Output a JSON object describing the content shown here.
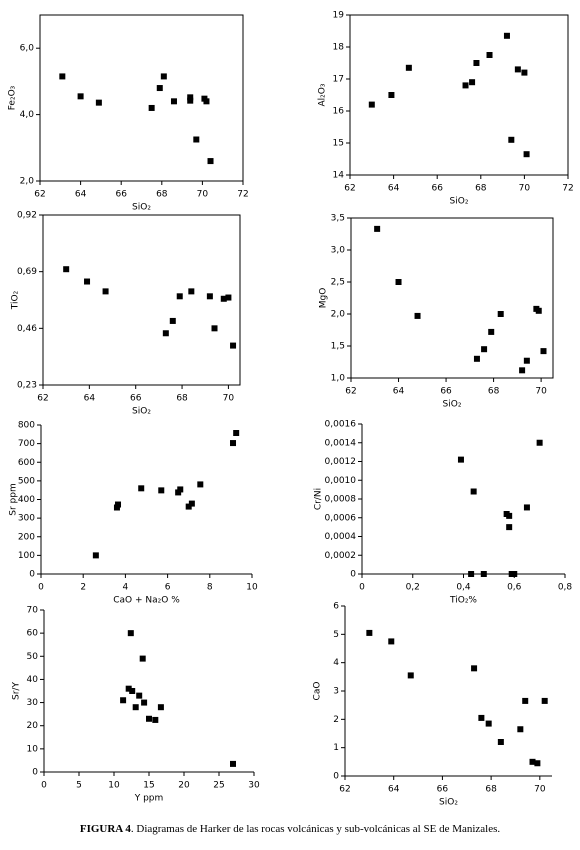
{
  "chart_data": [
    {
      "type": "scatter",
      "x_label": "SiO₂",
      "y_label": "Fe₂O₃",
      "color": "#000000",
      "box": true,
      "x": [
        63.1,
        64.0,
        64.9,
        67.5,
        67.9,
        68.1,
        68.6,
        69.4,
        69.4,
        70.1,
        70.2,
        69.7,
        70.4
      ],
      "values": [
        5.15,
        4.55,
        4.36,
        4.2,
        4.8,
        5.15,
        4.4,
        4.42,
        4.52,
        4.48,
        4.4,
        3.25,
        2.6
      ],
      "xlim": [
        62,
        72
      ],
      "xticks": [
        62,
        64,
        66,
        68,
        70,
        72
      ],
      "ylim": [
        2,
        7
      ],
      "yticks": [
        {
          "value": 2,
          "label": "2,0"
        },
        {
          "value": 4,
          "label": "4,0"
        },
        {
          "value": 6,
          "label": "6,0"
        }
      ]
    },
    {
      "type": "scatter",
      "x_label": "SiO₂",
      "y_label": "Al₂O₃",
      "color": "#000000",
      "box": true,
      "x": [
        63.0,
        63.9,
        64.7,
        67.3,
        67.6,
        67.8,
        68.4,
        69.2,
        69.4,
        69.7,
        70.0,
        70.1
      ],
      "values": [
        16.2,
        16.5,
        17.35,
        16.8,
        16.9,
        17.5,
        17.75,
        18.35,
        15.1,
        17.3,
        17.2,
        14.65
      ],
      "xlim": [
        62,
        72
      ],
      "xticks": [
        62,
        64,
        66,
        68,
        70,
        72
      ],
      "ylim": [
        14,
        19
      ],
      "yticks": [
        14,
        15,
        16,
        17,
        18,
        19
      ]
    },
    {
      "type": "scatter",
      "x_label": "SiO₂",
      "y_label": "TiO₂",
      "color": "#000000",
      "box": true,
      "x": [
        63.0,
        63.9,
        64.7,
        67.3,
        67.6,
        67.9,
        68.4,
        69.2,
        69.4,
        69.8,
        70.0,
        70.2
      ],
      "values": [
        0.7,
        0.65,
        0.61,
        0.44,
        0.49,
        0.59,
        0.61,
        0.59,
        0.46,
        0.58,
        0.585,
        0.39
      ],
      "xlim": [
        62,
        70.5
      ],
      "xticks": [
        62,
        64,
        66,
        68,
        70
      ],
      "ylim": [
        0.23,
        0.92
      ],
      "yticks": [
        {
          "value": 0.23,
          "label": "0,23"
        },
        {
          "value": 0.46,
          "label": "0,46"
        },
        {
          "value": 0.69,
          "label": "0,69"
        },
        {
          "value": 0.92,
          "label": "0,92"
        }
      ]
    },
    {
      "type": "scatter",
      "x_label": "SiO₂",
      "y_label": "MgO",
      "color": "#000000",
      "box": true,
      "x": [
        63.1,
        64.0,
        64.8,
        67.3,
        67.6,
        67.9,
        68.3,
        69.2,
        69.4,
        69.8,
        69.9,
        70.1
      ],
      "values": [
        3.33,
        2.5,
        1.97,
        1.3,
        1.45,
        1.72,
        2.0,
        1.12,
        1.27,
        2.08,
        2.05,
        1.42
      ],
      "xlim": [
        62,
        70.5
      ],
      "xticks": [
        62,
        64,
        66,
        68,
        70
      ],
      "ylim": [
        1,
        3.5
      ],
      "yticks": [
        {
          "value": 1,
          "label": "1,0"
        },
        {
          "value": 1.5,
          "label": "1,5"
        },
        {
          "value": 2,
          "label": "2,0"
        },
        {
          "value": 2.5,
          "label": "2,5"
        },
        {
          "value": 3,
          "label": "3,0"
        },
        {
          "value": 3.5,
          "label": "3,5"
        }
      ]
    },
    {
      "type": "scatter",
      "x_label": "CaO + Na₂O %",
      "y_label": "Sr ppm",
      "color": "#000000",
      "box": false,
      "x": [
        2.6,
        3.6,
        3.65,
        4.75,
        5.7,
        6.5,
        6.6,
        7.0,
        7.15,
        7.55,
        9.1,
        9.25
      ],
      "values": [
        100,
        357,
        373,
        460,
        449,
        438,
        454,
        362,
        378,
        481,
        703,
        757
      ],
      "xlim": [
        0,
        10
      ],
      "xticks": [
        0,
        2,
        4,
        6,
        8,
        10
      ],
      "ylim": [
        0,
        800
      ],
      "yticks": [
        0,
        100,
        200,
        300,
        400,
        500,
        600,
        700,
        800
      ]
    },
    {
      "type": "scatter",
      "x_label": "TiO₂%",
      "y_label": "Cr/Ni",
      "color": "#000000",
      "box": false,
      "x": [
        0.39,
        0.44,
        0.43,
        0.48,
        0.57,
        0.58,
        0.58,
        0.59,
        0.6,
        0.65,
        0.7
      ],
      "values": [
        0.00122,
        0.00088,
        0,
        0,
        0.00064,
        0.00062,
        0.0005,
        0,
        0,
        0.00071,
        0.0014
      ],
      "xlim": [
        0,
        0.8
      ],
      "xticks": [
        0,
        {
          "value": 0.2,
          "label": "0,2"
        },
        {
          "value": 0.4,
          "label": "0,4"
        },
        {
          "value": 0.6,
          "label": "0,6"
        },
        {
          "value": 0.8,
          "label": "0,8"
        }
      ],
      "ylim": [
        0,
        0.0016
      ],
      "yticks": [
        0,
        {
          "value": 0.0002,
          "label": "0,0002"
        },
        {
          "value": 0.0004,
          "label": "0,0004"
        },
        {
          "value": 0.0006,
          "label": "0,0006"
        },
        {
          "value": 0.0008,
          "label": "0,0008"
        },
        {
          "value": 0.001,
          "label": "0,0010"
        },
        {
          "value": 0.0012,
          "label": "0,0012"
        },
        {
          "value": 0.0014,
          "label": "0,0014"
        },
        {
          "value": 0.0016,
          "label": "0,0016"
        }
      ]
    },
    {
      "type": "scatter",
      "x_label": "Y ppm",
      "y_label": "Sr/Y",
      "color": "#000000",
      "box": false,
      "x": [
        11.3,
        12.1,
        12.4,
        12.6,
        13.1,
        13.6,
        14.1,
        14.3,
        15.0,
        15.9,
        16.7,
        27.0
      ],
      "values": [
        31,
        36,
        60,
        35,
        28,
        33,
        49,
        30,
        23,
        22.5,
        28,
        3.5
      ],
      "xlim": [
        0,
        30
      ],
      "xticks": [
        0,
        5,
        10,
        15,
        20,
        25,
        30
      ],
      "ylim": [
        0,
        70
      ],
      "yticks": [
        0,
        10,
        20,
        30,
        40,
        50,
        60,
        70
      ]
    },
    {
      "type": "scatter",
      "x_label": "SiO₂",
      "y_label": "CaO",
      "color": "#000000",
      "box": false,
      "x": [
        63.0,
        63.9,
        64.7,
        67.3,
        67.6,
        67.9,
        68.4,
        69.2,
        69.4,
        69.7,
        69.9,
        70.2
      ],
      "values": [
        5.05,
        4.75,
        3.55,
        3.8,
        2.05,
        1.85,
        1.2,
        1.65,
        2.65,
        0.5,
        0.45,
        2.65
      ],
      "xlim": [
        62,
        70.5
      ],
      "xticks": [
        62,
        64,
        66,
        68,
        70
      ],
      "ylim": [
        0,
        6
      ],
      "yticks": [
        0,
        1,
        2,
        3,
        4,
        5,
        6
      ]
    }
  ],
  "caption": {
    "label": "FIGURA 4",
    "text": ". Diagramas de Harker de las rocas volcánicas y sub-volcánicas al SE de Manizales."
  }
}
